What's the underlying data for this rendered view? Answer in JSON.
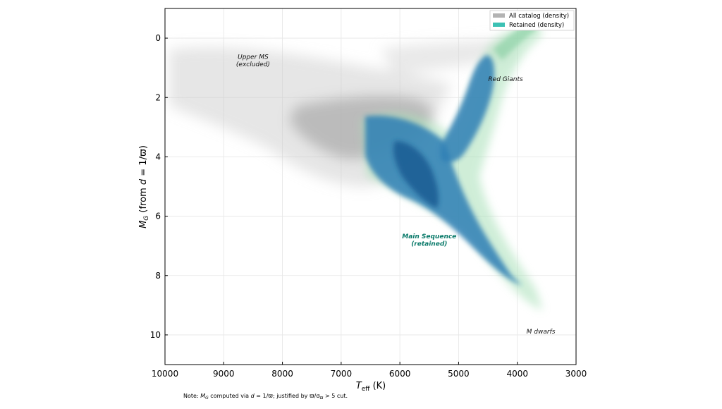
{
  "chart_data": {
    "type": "heatmap",
    "xlabel": "T_eff (K)",
    "ylabel": "M_G (from d = 1/ϖ)",
    "xlim": [
      10000,
      3000
    ],
    "ylim": [
      11,
      -1
    ],
    "x_ticks": [
      10000,
      9000,
      8000,
      7000,
      6000,
      5000,
      4000,
      3000
    ],
    "y_ticks": [
      0,
      2,
      4,
      6,
      8,
      10
    ],
    "grid": true,
    "legend": {
      "placement": "top-right",
      "entries": [
        {
          "label": "All catalog (density)",
          "color": "#b3b3b3"
        },
        {
          "label": "Retained (density)",
          "color": "#3cc1b4"
        }
      ]
    },
    "series": [
      {
        "name": "All catalog (density)",
        "color": "#9a9a9a",
        "regions": [
          {
            "teff": [
              10000,
              5400
            ],
            "mg": [
              0.5,
              4.5
            ],
            "level": "low"
          },
          {
            "teff": [
              7000,
              5400
            ],
            "mg": [
              1.8,
              5.2
            ],
            "level": "medium"
          }
        ]
      },
      {
        "name": "Retained (density)",
        "color": "#2f7fb5",
        "ridge": [
          {
            "teff": 6600,
            "mg": 3.2
          },
          {
            "teff": 6000,
            "mg": 3.9
          },
          {
            "teff": 5800,
            "mg": 4.5
          },
          {
            "teff": 5400,
            "mg": 5.3
          },
          {
            "teff": 5000,
            "mg": 6.2
          },
          {
            "teff": 4700,
            "mg": 7.0
          },
          {
            "teff": 4300,
            "mg": 8.0
          },
          {
            "teff": 3900,
            "mg": 9.0
          }
        ],
        "giant_branch": [
          {
            "teff": 5400,
            "mg": 3.8
          },
          {
            "teff": 5000,
            "mg": 2.7
          },
          {
            "teff": 4800,
            "mg": 1.8
          },
          {
            "teff": 4600,
            "mg": 0.8
          },
          {
            "teff": 4400,
            "mg": -0.3
          }
        ]
      }
    ],
    "annotations": [
      {
        "text": "Upper MS",
        "teff": 8500,
        "mg": 0.7
      },
      {
        "text": "(excluded)",
        "teff": 8500,
        "mg": 0.95
      },
      {
        "text": "Red Giants",
        "teff": 4200,
        "mg": 1.45
      },
      {
        "text": "Main Sequence",
        "teff": 5500,
        "mg": 6.75
      },
      {
        "text": "(retained)",
        "teff": 5500,
        "mg": 7.0
      },
      {
        "text": "M dwarfs",
        "teff": 3600,
        "mg": 9.95
      }
    ],
    "note": "Note: M_G computed via d = 1/ϖ; justified by ϖ/σ_ϖ > 5 cut."
  }
}
